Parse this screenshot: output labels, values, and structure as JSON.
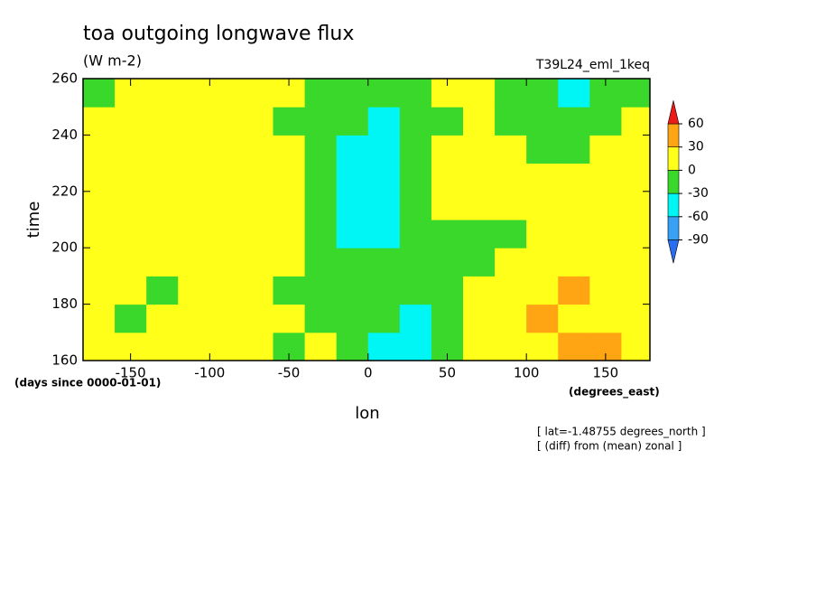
{
  "chart_data": {
    "type": "contour",
    "title": "toa outgoing longwave flux",
    "subtitle": "(W m-2)",
    "dataset_label": "T39L24_eml_1keq",
    "x_label": "lon",
    "y_label": "time",
    "y_units": "(days since 0000-01-01)",
    "x_units": "(degrees_east)",
    "annotations": [
      "[ lat=-1.48755 degrees_north ]",
      "[ (diff) from (mean) zonal ]"
    ],
    "xlim": [
      -180,
      178
    ],
    "ylim": [
      160,
      260
    ],
    "xticks": [
      -150,
      -100,
      -50,
      0,
      50,
      100,
      150
    ],
    "yticks": [
      160,
      180,
      200,
      220,
      240,
      260
    ],
    "levels": [
      -90,
      -60,
      -30,
      0,
      30,
      60
    ],
    "colors": [
      "#2a6ef0",
      "#38a0f5",
      "#00f5f5",
      "#3ad82a",
      "#ffff1a",
      "#ffa514",
      "#ee1a1a"
    ],
    "x": [
      -170,
      -150,
      -130,
      -110,
      -90,
      -70,
      -50,
      -30,
      -10,
      10,
      30,
      50,
      70,
      90,
      110,
      130,
      150,
      170
    ],
    "y": [
      165,
      175,
      185,
      195,
      205,
      215,
      225,
      235,
      245,
      255
    ],
    "z": [
      [
        10,
        5,
        20,
        15,
        25,
        10,
        -10,
        5,
        -20,
        -40,
        -50,
        -30,
        0,
        15,
        25,
        35,
        30,
        10
      ],
      [
        5,
        -20,
        10,
        20,
        15,
        5,
        0,
        -10,
        -30,
        -20,
        -40,
        -10,
        10,
        20,
        30,
        25,
        20,
        5
      ],
      [
        15,
        10,
        -10,
        10,
        20,
        15,
        -5,
        -20,
        -25,
        -10,
        -30,
        -20,
        5,
        10,
        20,
        30,
        15,
        10
      ],
      [
        20,
        15,
        5,
        0,
        10,
        20,
        5,
        -10,
        -30,
        -20,
        -15,
        -30,
        -10,
        5,
        15,
        10,
        20,
        15
      ],
      [
        25,
        20,
        10,
        15,
        5,
        10,
        15,
        -5,
        -35,
        -40,
        -20,
        -10,
        -20,
        -5,
        10,
        20,
        15,
        20
      ],
      [
        15,
        25,
        20,
        10,
        15,
        20,
        5,
        -10,
        -40,
        -50,
        -10,
        0,
        10,
        5,
        0,
        10,
        20,
        25
      ],
      [
        10,
        5,
        15,
        20,
        10,
        5,
        0,
        -20,
        -45,
        -55,
        -20,
        5,
        15,
        20,
        10,
        0,
        10,
        5
      ],
      [
        20,
        15,
        10,
        5,
        20,
        15,
        10,
        -15,
        -40,
        -50,
        -30,
        0,
        10,
        5,
        -10,
        -20,
        0,
        10
      ],
      [
        10,
        20,
        15,
        10,
        5,
        10,
        -5,
        -10,
        -30,
        -45,
        -25,
        -10,
        5,
        -5,
        -20,
        -30,
        -10,
        0
      ],
      [
        -10,
        5,
        10,
        0,
        10,
        5,
        0,
        -20,
        -25,
        -30,
        -10,
        0,
        10,
        -10,
        -25,
        -35,
        -20,
        -15
      ]
    ]
  }
}
